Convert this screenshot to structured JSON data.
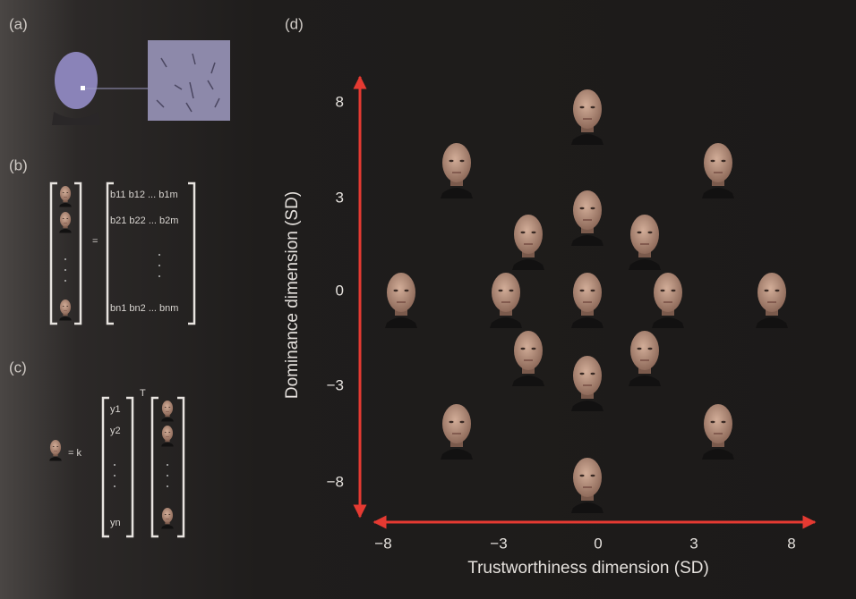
{
  "panels": {
    "a": {
      "label": "(a)"
    },
    "b": {
      "label": "(b)",
      "equals": "=",
      "matrix_rows": [
        "b11 b12 ... b1m",
        "b21 b22 ... b2m",
        "bn1 bn2 ... bnm"
      ]
    },
    "c": {
      "label": "(c)",
      "lhs": "= k",
      "transpose": "T",
      "vector": [
        "y1",
        "y2",
        "yn"
      ]
    },
    "d": {
      "label": "(d)",
      "x_axis": {
        "title": "Trustworthiness dimension (SD)",
        "ticks": [
          "−8",
          "−3",
          "0",
          "3",
          "8"
        ]
      },
      "y_axis": {
        "title": "Dominance dimension (SD)",
        "ticks": [
          "8",
          "3",
          "0",
          "−3",
          "−8"
        ]
      }
    }
  }
}
